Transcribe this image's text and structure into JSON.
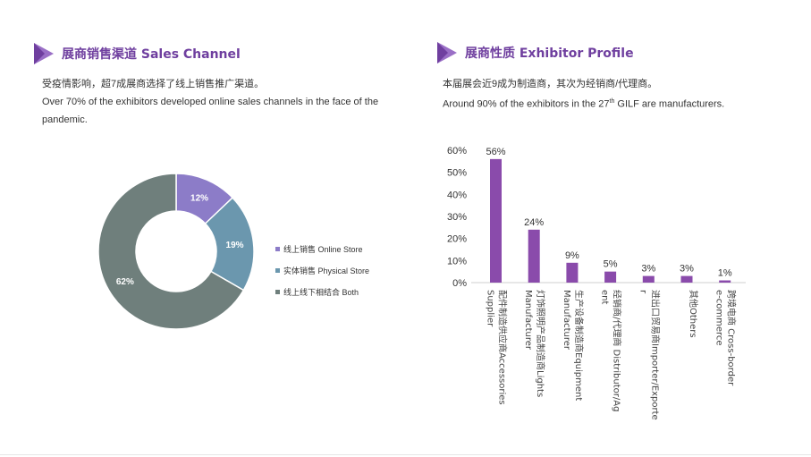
{
  "left": {
    "title": "展商销售渠道 Sales Channel",
    "intro_cn": "受疫情影响，超7成展商选择了线上销售推广渠道。",
    "intro_en": "Over 70% of the exhibitors developed online sales channels in the face of the pandemic."
  },
  "right": {
    "title": "展商性质 Exhibitor Profile",
    "intro_cn": "本届展会近9成为制造商，其次为经销商/代理商。",
    "intro_en_before": "Around  90% of the exhibitors in the 27",
    "intro_en_sup": "th",
    "intro_en_after": " GILF are manufacturers."
  },
  "colors": {
    "accent": "#6f3f9f",
    "bar": "#8a4bab",
    "online": "#8c7cc8",
    "physical": "#6b97ae",
    "both": "#6f7f7c"
  },
  "chart_data": [
    {
      "type": "pie",
      "labels": [
        "线上销售 Online Store",
        "实体销售 Physical Store",
        "线上线下相结合 Both"
      ],
      "values": [
        12,
        19,
        62
      ],
      "value_labels": [
        "12%",
        "19%",
        "62%"
      ],
      "colors": [
        "#8c7cc8",
        "#6b97ae",
        "#6f7f7c"
      ],
      "legend": "right"
    },
    {
      "type": "bar",
      "categories": [
        "配件制造供应商Accessories Supplier",
        "灯饰照明产品制造商Lights Manufacturer",
        "生产设备制造商Equipment Manufacturer",
        "经销商/代理商 Distributor/Agent",
        "进出口贸易商Importer/Exporter",
        "其他Others",
        "跨境电商 Cross-border e-commerce"
      ],
      "values": [
        56,
        24,
        9,
        5,
        3,
        3,
        1
      ],
      "value_labels": [
        "56%",
        "24%",
        "9%",
        "5%",
        "3%",
        "3%",
        "1%"
      ],
      "y_ticks": [
        "0%",
        "10%",
        "20%",
        "30%",
        "40%",
        "50%",
        "60%"
      ],
      "ylim": [
        0,
        60
      ],
      "grid": false
    }
  ]
}
